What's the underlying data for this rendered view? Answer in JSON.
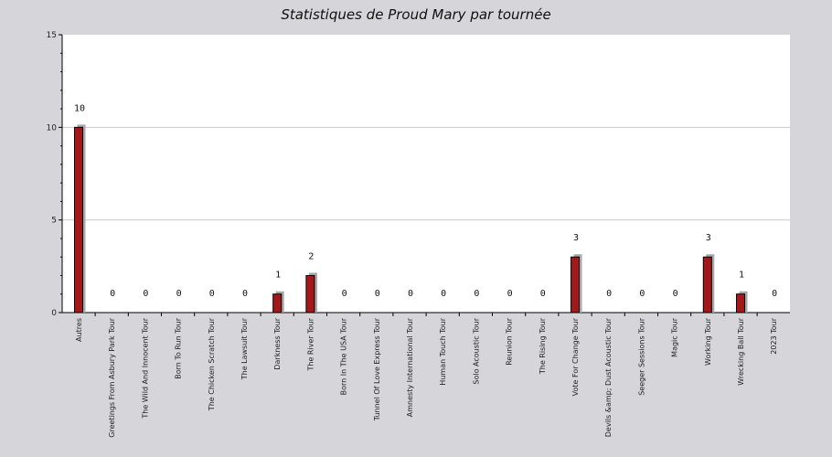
{
  "chart_data": {
    "type": "bar",
    "title": "Statistiques de Proud Mary par tournée",
    "xlabel": "",
    "ylabel": "",
    "ylim": [
      0,
      15
    ],
    "yticks": [
      0,
      5,
      10,
      15
    ],
    "grid": true,
    "colors": {
      "bar": "#a3191b",
      "shadow": "#a8a8a8",
      "plot_bg": "#ffffff",
      "page_bg": "#d6d5da",
      "grid": "#cccccc"
    },
    "categories": [
      "Autres",
      "Greetings From Asbury Park Tour",
      "The Wild And Innocent Tour",
      "Born To Run Tour",
      "The Chicken Scratch Tour",
      "The Lawsuit Tour",
      "Darkness Tour",
      "The River Tour",
      "Born In The USA Tour",
      "Tunnel Of Love Express Tour",
      "Amnesty International Tour",
      "Human Touch Tour",
      "Solo Acoustic Tour",
      "Reunion Tour",
      "The Rising Tour",
      "Vote For Change Tour",
      "Devils &amp; Dust Acoustic Tour",
      "Seeger Sessions Tour",
      "Magic Tour",
      "Working Tour",
      "Wrecking Ball Tour",
      "2023 Tour"
    ],
    "values": [
      10,
      0,
      0,
      0,
      0,
      0,
      1,
      2,
      0,
      0,
      0,
      0,
      0,
      0,
      0,
      3,
      0,
      0,
      0,
      3,
      1,
      0
    ]
  }
}
